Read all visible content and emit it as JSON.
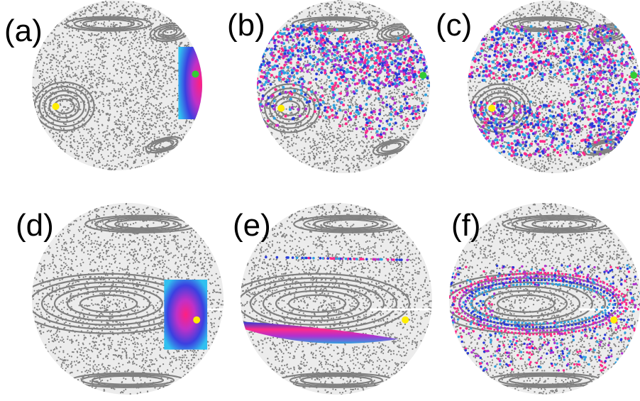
{
  "figure": {
    "panels": [
      {
        "label": "(a)",
        "marker": "green",
        "spread": "patch-right",
        "view": "top"
      },
      {
        "label": "(b)",
        "marker": "green",
        "spread": "band-mid",
        "view": "top"
      },
      {
        "label": "(c)",
        "marker": "green",
        "spread": "wide",
        "view": "top"
      },
      {
        "label": "(d)",
        "marker": "yellow",
        "spread": "patch-right-low",
        "view": "side"
      },
      {
        "label": "(e)",
        "marker": "yellow",
        "spread": "stripe-low",
        "view": "side"
      },
      {
        "label": "(f)",
        "marker": "yellow",
        "spread": "loop",
        "view": "side"
      }
    ],
    "colors": {
      "sphere_dots": "#808080",
      "sphere_bg": "#ececec",
      "fixed_point_green": "#33cc33",
      "fixed_point_yellow": "#ffee00",
      "ensemble": [
        "#ff2b8a",
        "#b030d0",
        "#2a3ad8",
        "#2ea0e0"
      ]
    }
  }
}
